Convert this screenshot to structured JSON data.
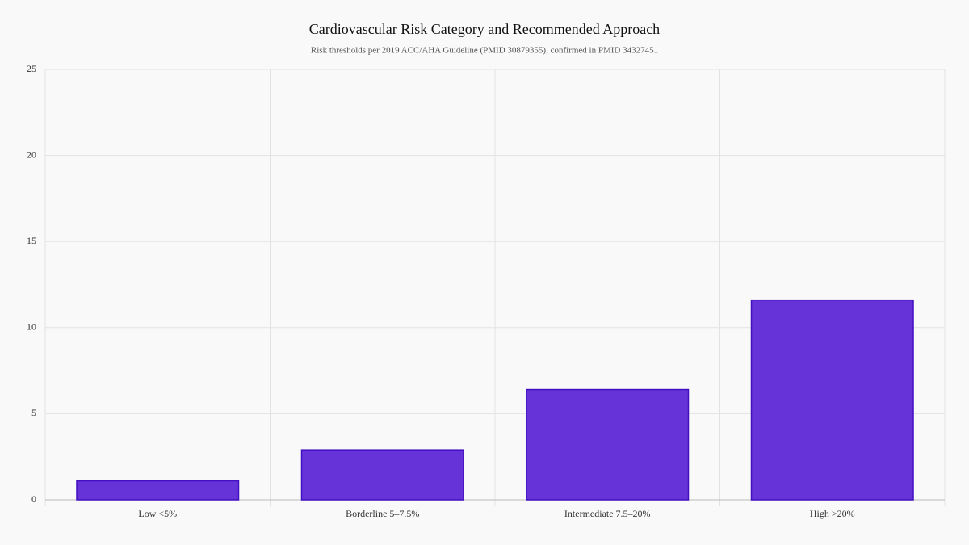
{
  "chart_data": {
    "type": "bar",
    "title": "Cardiovascular Risk Category and Recommended Approach",
    "subtitle": "Risk thresholds per 2019 ACC/AHA Guideline (PMID 30879355), confirmed in PMID 34327451",
    "categories": [
      "Low <5%",
      "Borderline 5–7.5%",
      "Intermediate 7.5–20%",
      "High >20%"
    ],
    "values": [
      1.1,
      2.9,
      6.4,
      11.6
    ],
    "color": "#6633d9",
    "ylim": [
      0,
      25
    ],
    "yticks": [
      0,
      5,
      10,
      15,
      20,
      25
    ],
    "grid": true
  }
}
